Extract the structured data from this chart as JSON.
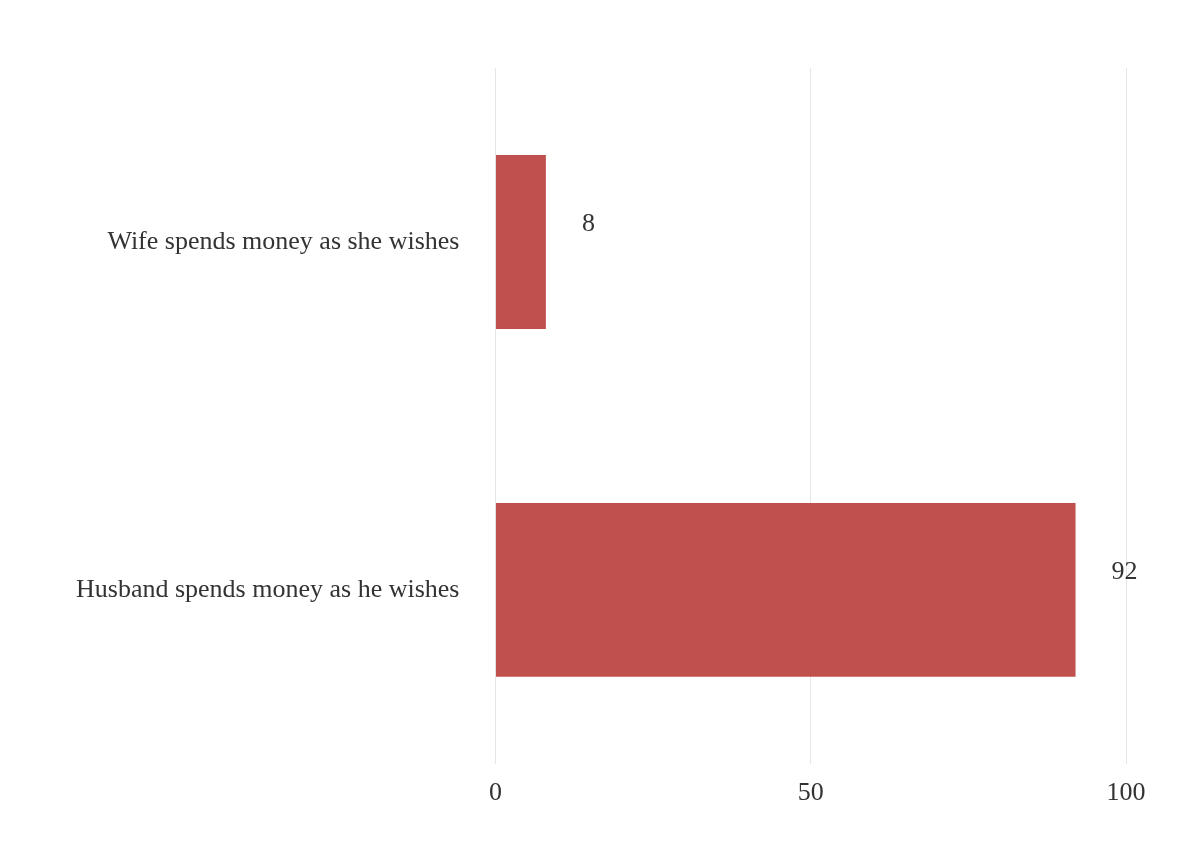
{
  "chart_data": {
    "type": "bar",
    "orientation": "horizontal",
    "categories": [
      "Wife spends money as she wishes",
      "Husband spends money as he wishes"
    ],
    "values": [
      8,
      92
    ],
    "color": "#c0504d",
    "xlim": [
      0,
      100
    ],
    "xticks": [
      0,
      50,
      100
    ],
    "grid": "x",
    "legend": false,
    "data_labels": true
  }
}
